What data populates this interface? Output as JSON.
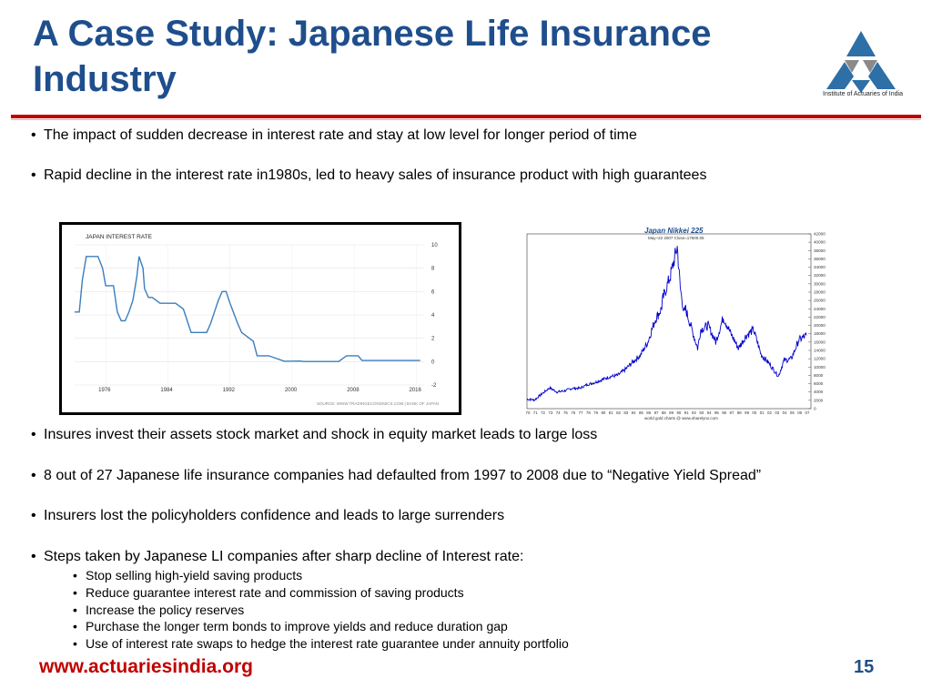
{
  "slide": {
    "title": "A Case Study: Japanese Life Insurance Industry",
    "logo_caption": "Institute of Actuaries of India",
    "bullets_top": [
      "The impact of sudden decrease in interest rate and stay at low level for longer period of time",
      "Rapid decline in the interest rate in1980s, led to heavy sales of insurance product with high guarantees"
    ],
    "bullets_bottom": [
      "Insures invest their assets stock market and shock in equity market leads to large loss",
      "8 out of 27 Japanese life insurance companies had defaulted from 1997 to 2008 due to “Negative Yield Spread”",
      "Insurers lost the policyholders confidence and leads to large surrenders",
      "Steps taken by Japanese LI companies after sharp decline of Interest rate:"
    ],
    "sub_bullets": [
      "Stop selling high-yield saving products",
      "Reduce guarantee interest rate and commission of saving products",
      "Increase the policy reserves",
      "Purchase the longer term bonds to improve yields and reduce duration gap",
      "Use of interest rate swaps to hedge the interest rate guarantee under annuity portfolio"
    ],
    "footer_url": "www.actuariesindia.org",
    "page_number": "15"
  },
  "colors": {
    "title": "#1f4e8c",
    "rule": "#c00000",
    "footer": "#c00000",
    "interest_line": "#3b7dbf",
    "nikkei_line": "#0000cc",
    "nikkei_title": "#1f4e8c",
    "logo_blue": "#2d6fa6",
    "logo_grey": "#8a8a8a"
  },
  "chart_data": [
    {
      "type": "line",
      "title": "JAPAN INTEREST RATE",
      "source": "SOURCE: WWW.TRADINGECONOMICS.COM | BANK OF JAPAN",
      "x_ticks": [
        "1976",
        "1984",
        "1992",
        "2000",
        "2008",
        "2016"
      ],
      "y_ticks": [
        "10",
        "8",
        "6",
        "4",
        "2",
        "0",
        "-2"
      ],
      "ylim": [
        -2,
        10
      ],
      "xlim": [
        1972,
        2017
      ],
      "series": [
        {
          "x": [
            1972,
            1972.6,
            1973,
            1973.5,
            1974,
            1975,
            1975.6,
            1976,
            1977,
            1977.5,
            1978,
            1978.5,
            1979,
            1979.5,
            1980,
            1980.3,
            1980.8,
            1981,
            1981.5,
            1982,
            1983,
            1983.5,
            1984,
            1985,
            1986,
            1986.5,
            1987,
            1989,
            1989.5,
            1990,
            1990.5,
            1991,
            1991.5,
            1992,
            1993,
            1993.5,
            1995,
            1995.5,
            1997,
            1999,
            2001,
            2001.5,
            2006,
            2007,
            2008.5,
            2009,
            2016.5
          ],
          "values": [
            4.25,
            4.25,
            7,
            9,
            9,
            9,
            8,
            6.5,
            6.5,
            4.25,
            3.5,
            3.5,
            4.25,
            5.25,
            7.25,
            9,
            8,
            6.25,
            5.5,
            5.5,
            5,
            5,
            5,
            5,
            4.5,
            3.5,
            2.5,
            2.5,
            3.25,
            4.25,
            5.25,
            6,
            6,
            5,
            3.25,
            2.5,
            1.75,
            0.5,
            0.5,
            0.03,
            0.05,
            0.01,
            0.01,
            0.5,
            0.5,
            0.1,
            0.1
          ]
        }
      ]
    },
    {
      "type": "line",
      "title": "Japan Nikkei 225",
      "subtitle": "May~22 2007  Close=17600.05",
      "credit": "world gold charts @ www.sharelynx.com",
      "x_ticks": [
        "70",
        "71",
        "72",
        "73",
        "74",
        "75",
        "76",
        "77",
        "78",
        "79",
        "80",
        "81",
        "82",
        "83",
        "84",
        "85",
        "86",
        "87",
        "88",
        "89",
        "90",
        "91",
        "92",
        "93",
        "94",
        "95",
        "96",
        "97",
        "98",
        "99",
        "00",
        "01",
        "02",
        "03",
        "04",
        "05",
        "06",
        "07"
      ],
      "y_ticks": [
        "42000",
        "40000",
        "38000",
        "36000",
        "34000",
        "32000",
        "30000",
        "28000",
        "26000",
        "24000",
        "22000",
        "20000",
        "18000",
        "16000",
        "14000",
        "12000",
        "10000",
        "8000",
        "6000",
        "4000",
        "2000",
        "0"
      ],
      "ylim": [
        0,
        42000
      ],
      "series": [
        {
          "x": [
            1970,
            1971,
            1972,
            1973,
            1974,
            1975,
            1976,
            1977,
            1978,
            1979,
            1980,
            1981,
            1982,
            1983,
            1984,
            1985,
            1986,
            1987,
            1987.8,
            1988,
            1989,
            1989.9,
            1990.3,
            1990.8,
            1991,
            1992,
            1992.6,
            1993,
            1994,
            1995,
            1996,
            1997,
            1998,
            1999,
            2000,
            2001,
            2002,
            2003,
            2003.3,
            2004,
            2005,
            2006,
            2007
          ],
          "values": [
            2300,
            2100,
            3600,
            5000,
            4000,
            4300,
            4900,
            4900,
            5800,
            6300,
            7000,
            7700,
            8000,
            9400,
            11200,
            12800,
            16000,
            21500,
            24000,
            26500,
            32000,
            38900,
            29000,
            23000,
            24000,
            18000,
            14500,
            19000,
            20000,
            16000,
            22000,
            18000,
            14500,
            17500,
            19000,
            13000,
            11000,
            8500,
            7800,
            11500,
            12000,
            16500,
            17600
          ]
        }
      ]
    }
  ]
}
